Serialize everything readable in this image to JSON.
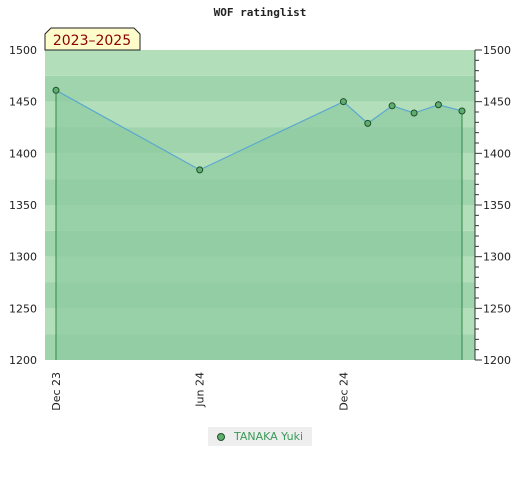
{
  "title": "WOF ratinglist",
  "chart_data": {
    "type": "line",
    "title": "WOF ratinglist",
    "period_label": "2023–2025",
    "x_ticks": [
      "Dec 23",
      "Jun 24",
      "Dec 24"
    ],
    "ylim": [
      1200,
      1500
    ],
    "y_ticks": [
      1200,
      1250,
      1300,
      1350,
      1400,
      1450,
      1500
    ],
    "series": [
      {
        "name": "TANAKA Yuki",
        "x": [
          "2023-12",
          "2024-06",
          "2024-12",
          "2025-01",
          "2025-02",
          "2025-03",
          "2025-04",
          "2025-05"
        ],
        "values": [
          1461,
          1384,
          1450,
          1429,
          1446,
          1439,
          1447,
          1441
        ]
      }
    ],
    "colors": {
      "line": "#5aa8d0",
      "marker_fill": "#5fae6e",
      "marker_edge": "#1f4f2a",
      "area": "#8dcba0",
      "vline": "#2e8a4a",
      "label_bg": "#fffccc",
      "label_text": "#8b0000"
    },
    "grid": true,
    "legend": "bottom-center"
  }
}
